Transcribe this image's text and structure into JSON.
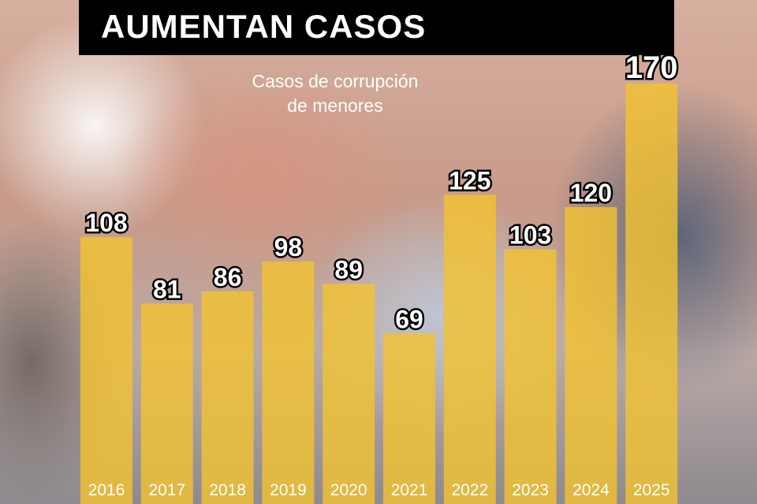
{
  "chart_data": {
    "type": "bar",
    "title": "AUMENTAN CASOS",
    "subtitle": [
      "Casos de corrupción",
      "de menores"
    ],
    "categories": [
      "2016",
      "2017",
      "2018",
      "2019",
      "2020",
      "2021",
      "2022",
      "2023",
      "2024",
      "2025"
    ],
    "values": [
      108,
      81,
      86,
      98,
      89,
      69,
      125,
      103,
      120,
      170
    ],
    "xlabel": "",
    "ylabel": "",
    "ylim": [
      0,
      170
    ],
    "grid": false,
    "bar_color": "#f2c232",
    "data_labels": true
  }
}
